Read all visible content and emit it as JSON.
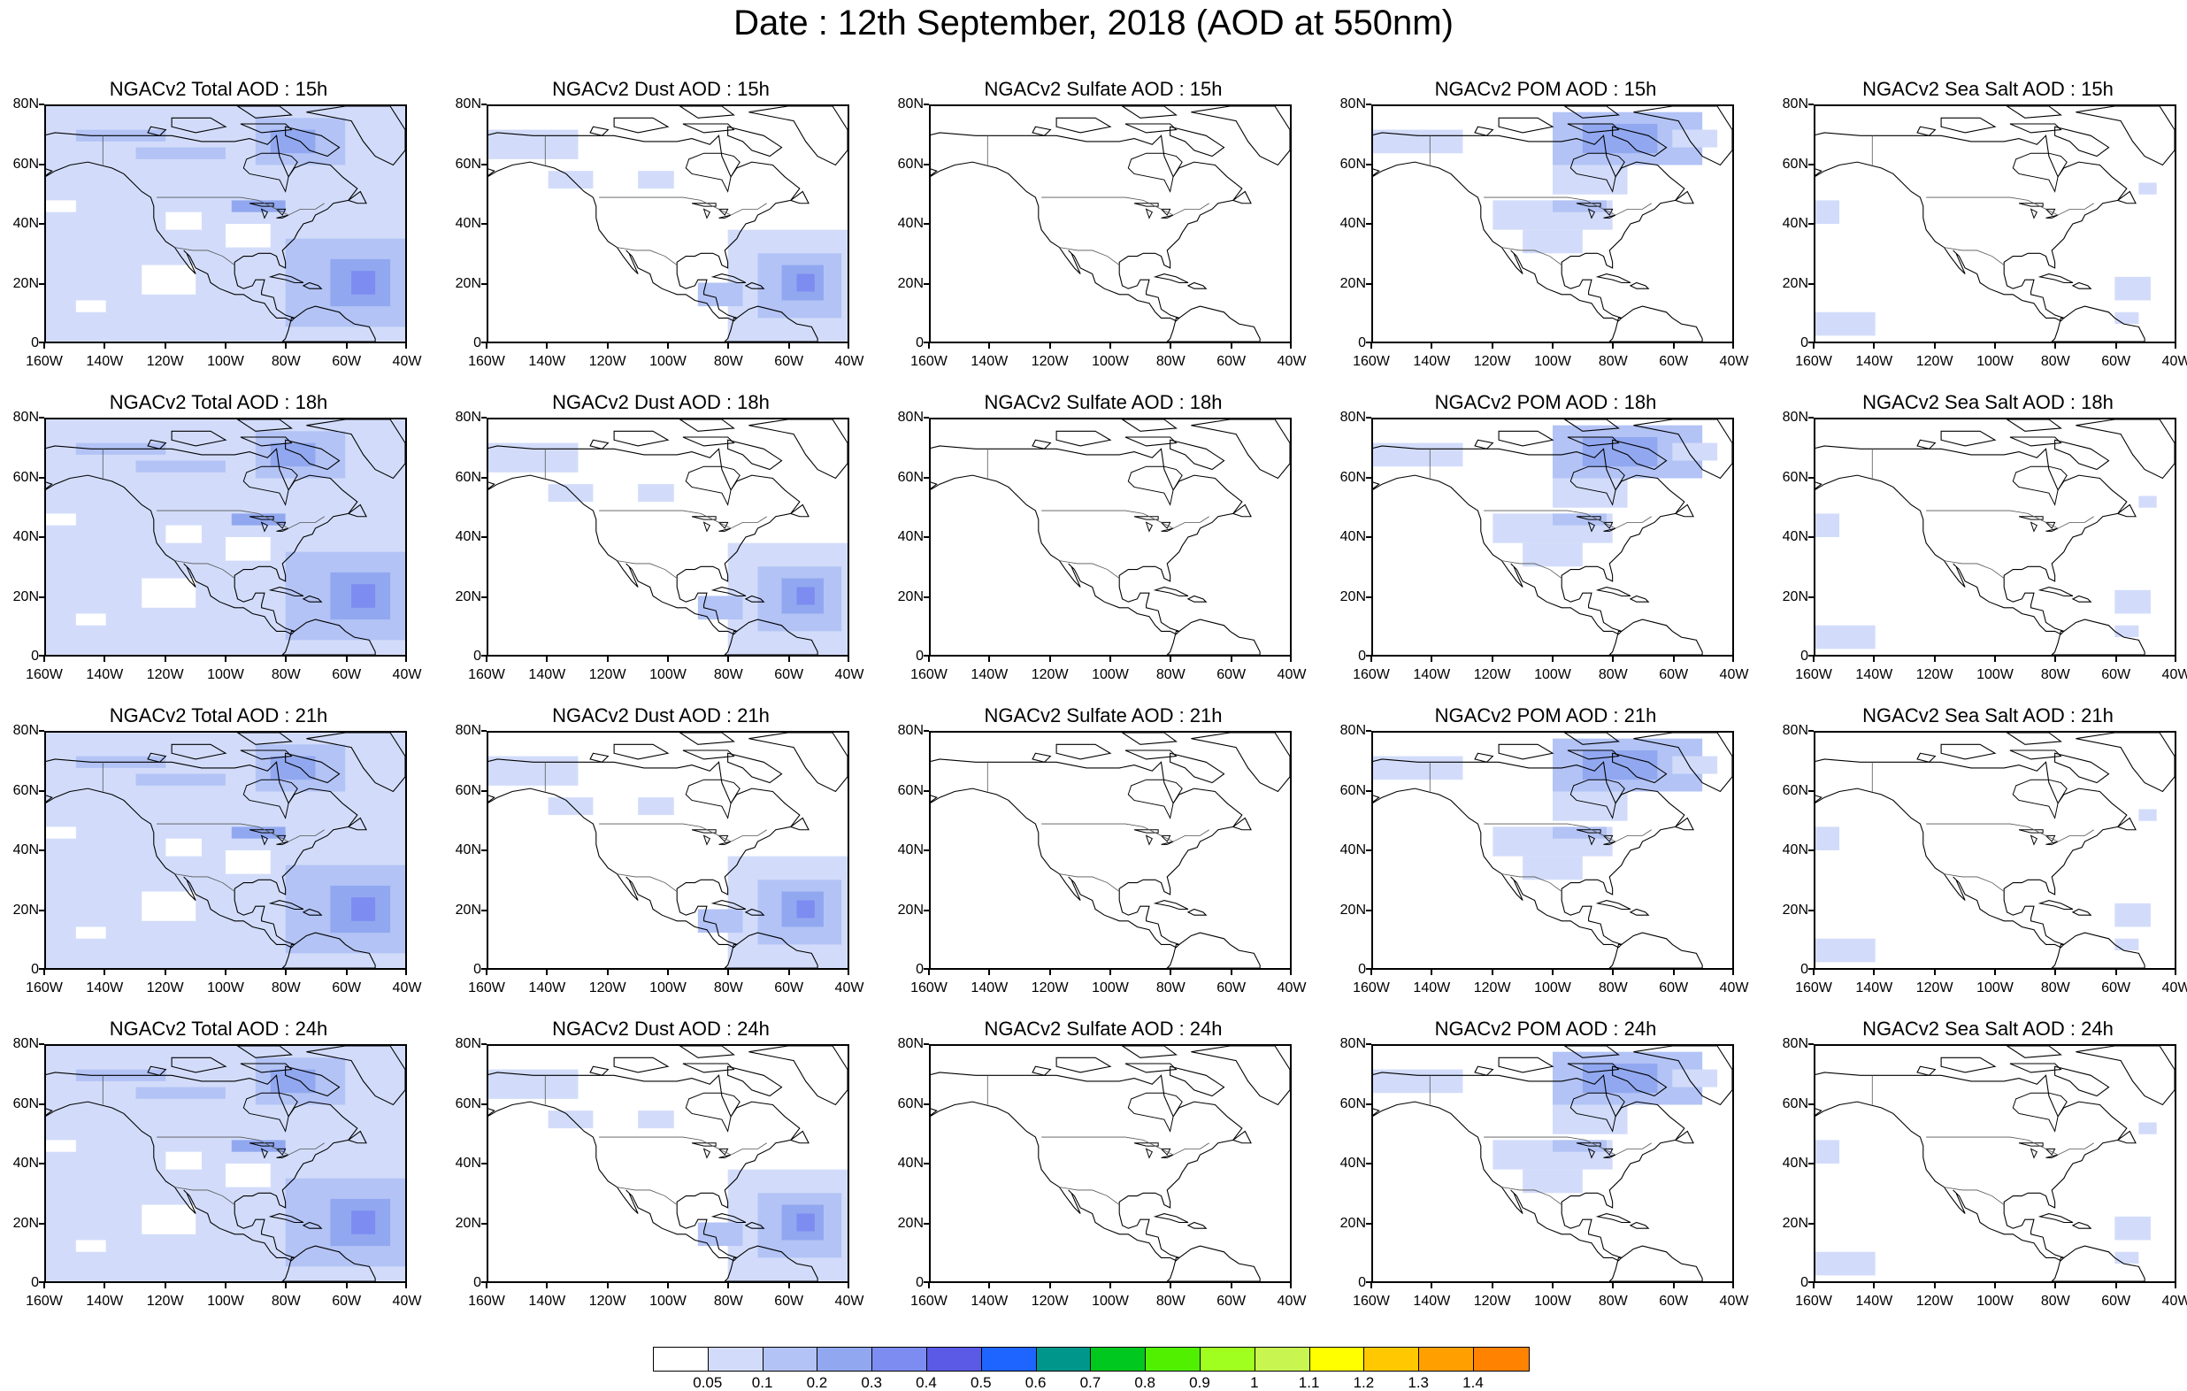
{
  "title": "Date : 12th September, 2018 (AOD at 550nm)",
  "lat_ticks": [
    "80N",
    "60N",
    "40N",
    "20N",
    "0"
  ],
  "lon_ticks": [
    "160W",
    "140W",
    "120W",
    "100W",
    "80W",
    "60W",
    "40W"
  ],
  "panels": [
    {
      "title": "NGACv2 Total AOD : 15h",
      "species": "total"
    },
    {
      "title": "NGACv2 Dust AOD : 15h",
      "species": "dust"
    },
    {
      "title": "NGACv2 Sulfate AOD : 15h",
      "species": "sulfate"
    },
    {
      "title": "NGACv2 POM AOD : 15h",
      "species": "pom"
    },
    {
      "title": "NGACv2 Sea Salt AOD : 15h",
      "species": "seasalt"
    },
    {
      "title": "NGACv2 Total AOD : 18h",
      "species": "total"
    },
    {
      "title": "NGACv2 Dust AOD : 18h",
      "species": "dust"
    },
    {
      "title": "NGACv2 Sulfate AOD : 18h",
      "species": "sulfate"
    },
    {
      "title": "NGACv2 POM AOD : 18h",
      "species": "pom"
    },
    {
      "title": "NGACv2 Sea Salt AOD : 18h",
      "species": "seasalt"
    },
    {
      "title": "NGACv2 Total AOD : 21h",
      "species": "total"
    },
    {
      "title": "NGACv2 Dust AOD : 21h",
      "species": "dust"
    },
    {
      "title": "NGACv2 Sulfate AOD : 21h",
      "species": "sulfate"
    },
    {
      "title": "NGACv2 POM AOD : 21h",
      "species": "pom"
    },
    {
      "title": "NGACv2 Sea Salt AOD : 21h",
      "species": "seasalt"
    },
    {
      "title": "NGACv2 Total AOD : 24h",
      "species": "total"
    },
    {
      "title": "NGACv2 Dust AOD : 24h",
      "species": "dust"
    },
    {
      "title": "NGACv2 Sulfate AOD : 24h",
      "species": "sulfate"
    },
    {
      "title": "NGACv2 POM AOD : 24h",
      "species": "pom"
    },
    {
      "title": "NGACv2 Sea Salt  AOD : 24h",
      "species": "seasalt"
    }
  ],
  "colorbar": {
    "colors": [
      "#ffffff",
      "#d2dcfa",
      "#b3c3f5",
      "#91a8f0",
      "#7c8cf0",
      "#5a5ae6",
      "#1e64ff",
      "#00968c",
      "#00c81e",
      "#50f000",
      "#a0ff1e",
      "#c8f550",
      "#ffff00",
      "#ffc800",
      "#ffa000",
      "#ff8200",
      "#ff2814"
    ],
    "labels": [
      "0.05",
      "0.1",
      "0.2",
      "0.3",
      "0.4",
      "0.5",
      "0.6",
      "0.7",
      "0.8",
      "0.9",
      "1",
      "1.1",
      "1.2",
      "1.3",
      "1.4"
    ]
  }
}
